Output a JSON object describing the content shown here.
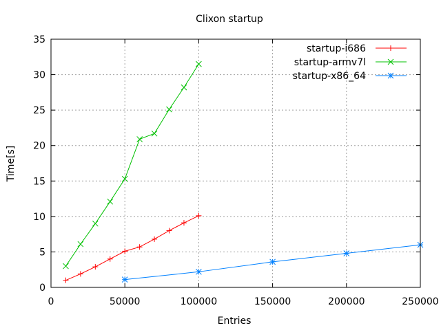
{
  "chart_data": {
    "type": "line",
    "title": "Clixon startup",
    "xlabel": "Entries",
    "ylabel": "Time[s]",
    "xlim": [
      0,
      250000
    ],
    "ylim": [
      0,
      35
    ],
    "xticks": [
      0,
      50000,
      100000,
      150000,
      200000,
      250000
    ],
    "yticks": [
      0,
      5,
      10,
      15,
      20,
      25,
      30,
      35
    ],
    "grid": true,
    "legend": "top-right",
    "series": [
      {
        "name": "startup-i686",
        "color": "#ff0000",
        "marker": "plus",
        "x": [
          10000,
          20000,
          30000,
          40000,
          50000,
          60000,
          70000,
          80000,
          90000,
          100000
        ],
        "y": [
          1.0,
          1.9,
          2.9,
          4.0,
          5.1,
          5.7,
          6.8,
          8.0,
          9.1,
          10.1
        ]
      },
      {
        "name": "startup-armv7l",
        "color": "#00c000",
        "marker": "cross",
        "x": [
          10000,
          20000,
          30000,
          40000,
          50000,
          60000,
          70000,
          80000,
          90000,
          100000
        ],
        "y": [
          3.0,
          6.1,
          9.0,
          12.1,
          15.3,
          20.9,
          21.7,
          25.1,
          28.2,
          31.5
        ]
      },
      {
        "name": "startup-x86_64",
        "color": "#0080ff",
        "marker": "star",
        "x": [
          50000,
          100000,
          150000,
          200000,
          250000
        ],
        "y": [
          1.1,
          2.2,
          3.6,
          4.8,
          6.0
        ]
      }
    ]
  }
}
